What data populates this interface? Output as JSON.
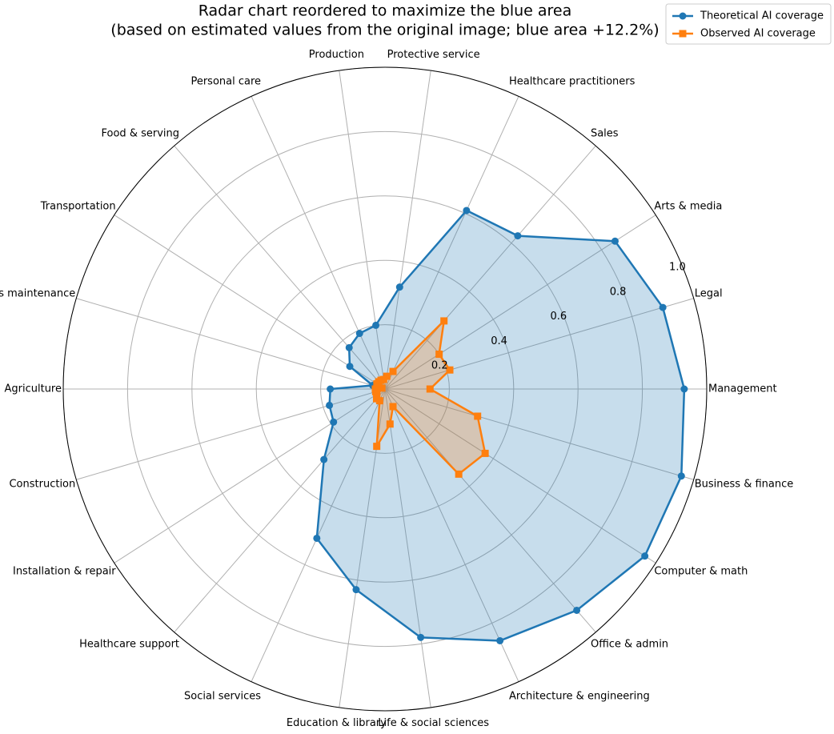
{
  "chart_data": {
    "type": "radar",
    "title": [
      "Radar chart reordered to maximize the blue area",
      "(based on estimated values from the original image; blue area +12.2%)"
    ],
    "categories": [
      "Management",
      "Legal",
      "Arts & media",
      "Sales",
      "Healthcare practitioners",
      "Protective service",
      "Production",
      "Personal care",
      "Food & serving",
      "Transportation",
      "Grounds maintenance",
      "Agriculture",
      "Construction",
      "Installation & repair",
      "Healthcare support",
      "Social services",
      "Education & library",
      "Life & social sciences",
      "Architecture & engineering",
      "Office & admin",
      "Computer & math",
      "Business & finance"
    ],
    "series": [
      {
        "name": "Theoretical AI coverage",
        "color": "#1f77b4",
        "marker": "circle",
        "fill": true,
        "values": [
          0.93,
          0.9,
          0.85,
          0.63,
          0.61,
          0.32,
          0.2,
          0.19,
          0.17,
          0.13,
          0.04,
          0.17,
          0.18,
          0.19,
          0.29,
          0.51,
          0.63,
          0.78,
          0.86,
          0.91,
          0.96,
          0.96
        ]
      },
      {
        "name": "Observed AI coverage",
        "color": "#ff7f0e",
        "marker": "square",
        "fill": true,
        "values": [
          0.14,
          0.21,
          0.2,
          0.28,
          0.06,
          0.04,
          0.03,
          0.03,
          0.03,
          0.03,
          0.01,
          0.03,
          0.03,
          0.03,
          0.04,
          0.04,
          0.18,
          0.11,
          0.06,
          0.35,
          0.37,
          0.3
        ]
      }
    ],
    "rlim": [
      0,
      1.0
    ],
    "rticks": [
      0.2,
      0.4,
      0.6,
      0.8,
      {
        "value": 1.0,
        "label": "1.0"
      }
    ],
    "grid": true,
    "legend": "upper right"
  }
}
